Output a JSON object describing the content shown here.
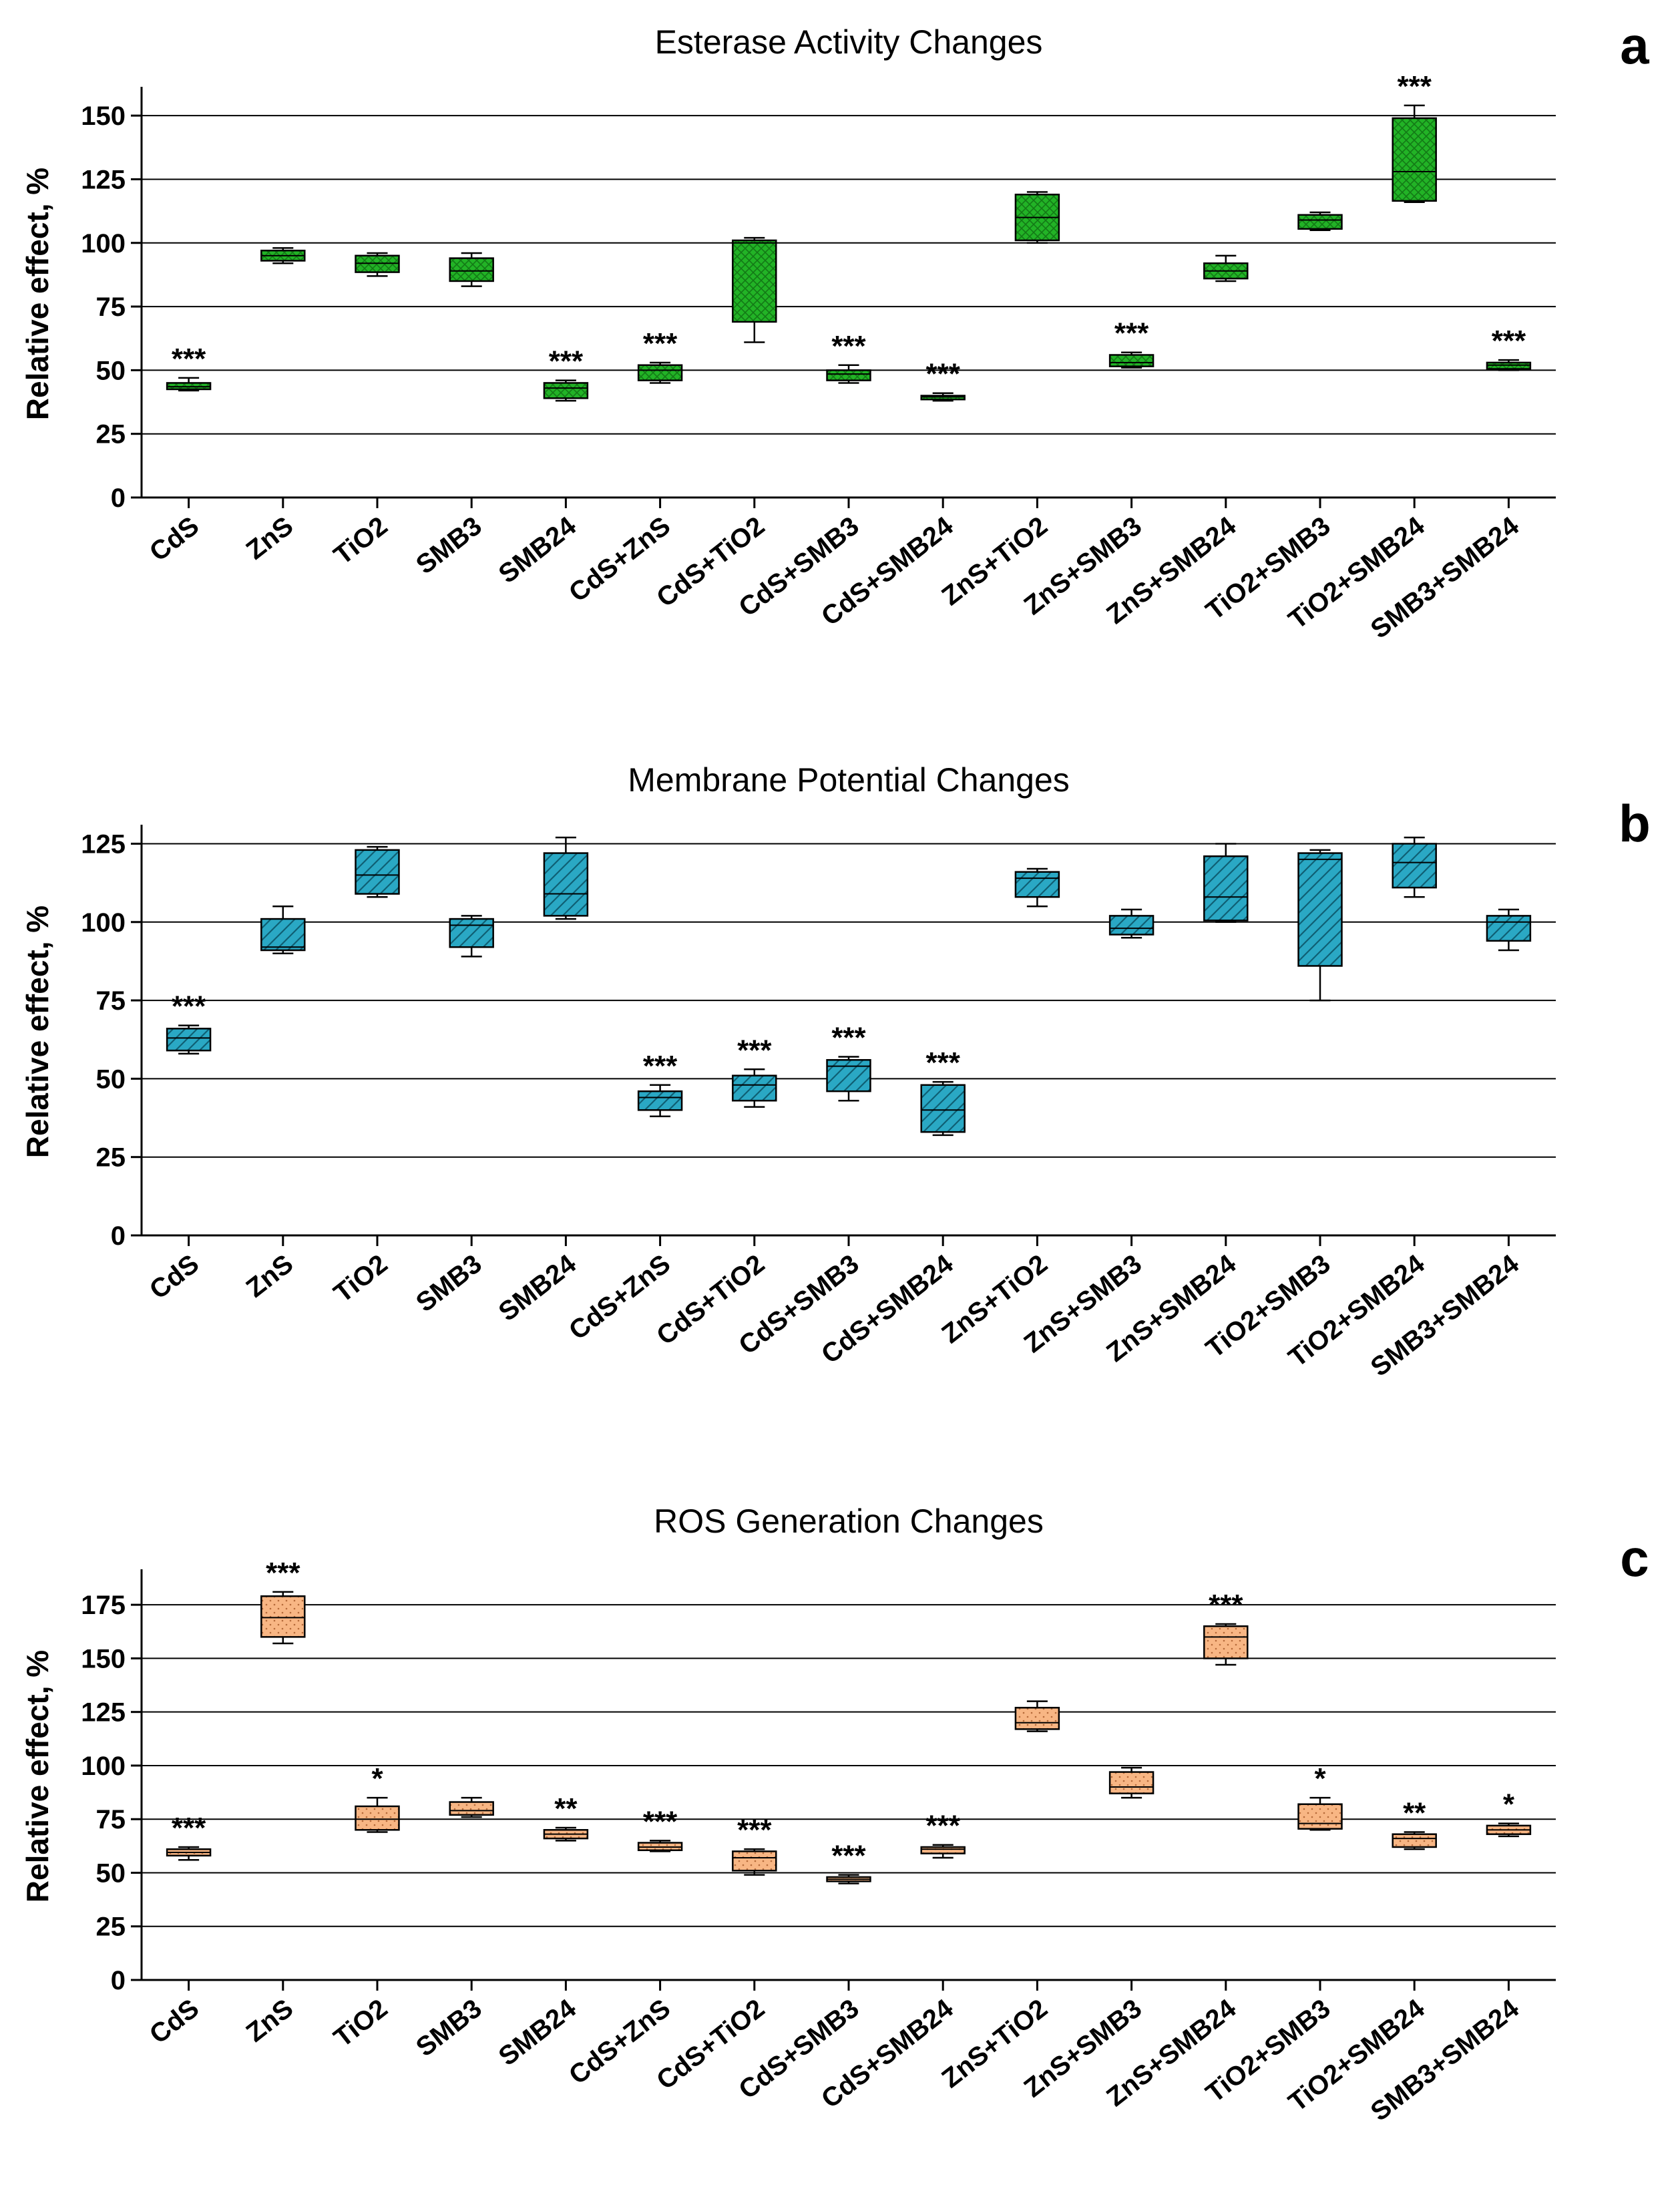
{
  "chart_data": [
    {
      "type": "box",
      "panel": "a",
      "title": "Esterase Activity Changes",
      "ylabel": "Relative effect, %",
      "xlabel": "",
      "ylim": [
        0,
        160
      ],
      "yticks": [
        0,
        25,
        50,
        75,
        100,
        125,
        150
      ],
      "gridlines": [
        25,
        50,
        75,
        100,
        125,
        150
      ],
      "color": "#22b326",
      "pattern": "crosshatch",
      "categories": [
        "CdS",
        "ZnS",
        "TiO2",
        "SMB3",
        "SMB24",
        "CdS+ZnS",
        "CdS+TiO2",
        "CdS+SMB3",
        "CdS+SMB24",
        "ZnS+TiO2",
        "ZnS+SMB3",
        "ZnS+SMB24",
        "TiO2+SMB3",
        "TiO2+SMB24",
        "SMB3+SMB24"
      ],
      "boxes": [
        {
          "min": 42,
          "q1": 42.5,
          "median": 43.5,
          "q3": 45,
          "max": 47
        },
        {
          "min": 92,
          "q1": 93,
          "median": 95,
          "q3": 97,
          "max": 98
        },
        {
          "min": 87,
          "q1": 88.5,
          "median": 92,
          "q3": 95,
          "max": 96
        },
        {
          "min": 83,
          "q1": 85,
          "median": 89,
          "q3": 94,
          "max": 96
        },
        {
          "min": 38,
          "q1": 39,
          "median": 43,
          "q3": 45,
          "max": 46
        },
        {
          "min": 45,
          "q1": 46,
          "median": 50,
          "q3": 52,
          "max": 53
        },
        {
          "min": 61,
          "q1": 69,
          "median": 100,
          "q3": 101,
          "max": 102
        },
        {
          "min": 45,
          "q1": 46,
          "median": 48.5,
          "q3": 50,
          "max": 52
        },
        {
          "min": 38,
          "q1": 38.5,
          "median": 39.5,
          "q3": 40,
          "max": 41
        },
        {
          "min": 100,
          "q1": 101,
          "median": 110,
          "q3": 119,
          "max": 120
        },
        {
          "min": 51,
          "q1": 51.5,
          "median": 53,
          "q3": 56,
          "max": 57
        },
        {
          "min": 85,
          "q1": 86,
          "median": 89,
          "q3": 92,
          "max": 95
        },
        {
          "min": 105,
          "q1": 105.5,
          "median": 109,
          "q3": 111,
          "max": 112
        },
        {
          "min": 116,
          "q1": 116.5,
          "median": 128,
          "q3": 149,
          "max": 154
        },
        {
          "min": 50,
          "q1": 50.5,
          "median": 52,
          "q3": 53,
          "max": 54
        }
      ],
      "significance": [
        "***",
        "",
        "",
        "",
        "***",
        "***",
        "",
        "***",
        "***",
        "",
        "***",
        "",
        "",
        "***",
        "***"
      ]
    },
    {
      "type": "box",
      "panel": "b",
      "title": "Membrane Potential Changes",
      "ylabel": "Relative effect, %",
      "xlabel": "",
      "ylim": [
        0,
        130
      ],
      "yticks": [
        0,
        25,
        50,
        75,
        100,
        125
      ],
      "gridlines": [
        25,
        50,
        75,
        100,
        125
      ],
      "color": "#2aa8c4",
      "pattern": "diagonal",
      "categories": [
        "CdS",
        "ZnS",
        "TiO2",
        "SMB3",
        "SMB24",
        "CdS+ZnS",
        "CdS+TiO2",
        "CdS+SMB3",
        "CdS+SMB24",
        "ZnS+TiO2",
        "ZnS+SMB3",
        "ZnS+SMB24",
        "TiO2+SMB3",
        "TiO2+SMB24",
        "SMB3+SMB24"
      ],
      "boxes": [
        {
          "min": 58,
          "q1": 59,
          "median": 63,
          "q3": 66,
          "max": 67
        },
        {
          "min": 90,
          "q1": 91,
          "median": 92,
          "q3": 101,
          "max": 105
        },
        {
          "min": 108,
          "q1": 109,
          "median": 115,
          "q3": 123,
          "max": 124
        },
        {
          "min": 89,
          "q1": 92,
          "median": 99,
          "q3": 101,
          "max": 102
        },
        {
          "min": 101,
          "q1": 102,
          "median": 109,
          "q3": 122,
          "max": 127
        },
        {
          "min": 38,
          "q1": 40,
          "median": 44,
          "q3": 46,
          "max": 48
        },
        {
          "min": 41,
          "q1": 43,
          "median": 48,
          "q3": 51,
          "max": 53
        },
        {
          "min": 43,
          "q1": 46,
          "median": 54,
          "q3": 56,
          "max": 57
        },
        {
          "min": 32,
          "q1": 33,
          "median": 40,
          "q3": 48,
          "max": 49
        },
        {
          "min": 105,
          "q1": 108,
          "median": 114,
          "q3": 116,
          "max": 117
        },
        {
          "min": 95,
          "q1": 96,
          "median": 98,
          "q3": 102,
          "max": 104
        },
        {
          "min": 100,
          "q1": 100.5,
          "median": 108,
          "q3": 121,
          "max": 125
        },
        {
          "min": 75,
          "q1": 86,
          "median": 120,
          "q3": 122,
          "max": 123
        },
        {
          "min": 108,
          "q1": 111,
          "median": 119,
          "q3": 125,
          "max": 127
        },
        {
          "min": 91,
          "q1": 94,
          "median": 100,
          "q3": 102,
          "max": 104
        }
      ],
      "significance": [
        "***",
        "",
        "",
        "",
        "",
        "***",
        "***",
        "***",
        "***",
        "",
        "",
        "",
        "",
        "",
        ""
      ]
    },
    {
      "type": "box",
      "panel": "c",
      "title": "ROS Generation Changes",
      "ylabel": "Relative effect, %",
      "xlabel": "",
      "ylim": [
        0,
        190
      ],
      "yticks": [
        0,
        25,
        50,
        75,
        100,
        125,
        150,
        175
      ],
      "gridlines": [
        25,
        50,
        75,
        100,
        125,
        150,
        175
      ],
      "color": "#f8b684",
      "pattern": "dots",
      "categories": [
        "CdS",
        "ZnS",
        "TiO2",
        "SMB3",
        "SMB24",
        "CdS+ZnS",
        "CdS+TiO2",
        "CdS+SMB3",
        "CdS+SMB24",
        "ZnS+TiO2",
        "ZnS+SMB3",
        "ZnS+SMB24",
        "TiO2+SMB3",
        "TiO2+SMB24",
        "SMB3+SMB24"
      ],
      "boxes": [
        {
          "min": 56,
          "q1": 58,
          "median": 59.5,
          "q3": 61,
          "max": 62
        },
        {
          "min": 157,
          "q1": 160,
          "median": 169,
          "q3": 179,
          "max": 181
        },
        {
          "min": 69,
          "q1": 70,
          "median": 75,
          "q3": 81,
          "max": 85
        },
        {
          "min": 76,
          "q1": 77,
          "median": 79,
          "q3": 83,
          "max": 85
        },
        {
          "min": 65,
          "q1": 66,
          "median": 68,
          "q3": 70,
          "max": 71
        },
        {
          "min": 60,
          "q1": 60.5,
          "median": 62,
          "q3": 64,
          "max": 65
        },
        {
          "min": 49,
          "q1": 51,
          "median": 57,
          "q3": 60,
          "max": 61
        },
        {
          "min": 45,
          "q1": 46,
          "median": 47,
          "q3": 48,
          "max": 49
        },
        {
          "min": 57,
          "q1": 59,
          "median": 61,
          "q3": 62,
          "max": 63
        },
        {
          "min": 116,
          "q1": 117,
          "median": 120,
          "q3": 127,
          "max": 130
        },
        {
          "min": 85,
          "q1": 87,
          "median": 90,
          "q3": 97,
          "max": 99
        },
        {
          "min": 147,
          "q1": 150,
          "median": 160,
          "q3": 165,
          "max": 166
        },
        {
          "min": 70,
          "q1": 70.5,
          "median": 73,
          "q3": 82,
          "max": 85
        },
        {
          "min": 61,
          "q1": 62,
          "median": 66,
          "q3": 68,
          "max": 69
        },
        {
          "min": 67,
          "q1": 68,
          "median": 70,
          "q3": 72,
          "max": 73
        }
      ],
      "significance": [
        "***",
        "***",
        "*",
        "",
        "**",
        "***",
        "***",
        "***",
        "***",
        "",
        "",
        "***",
        "*",
        "**",
        "*"
      ]
    }
  ]
}
